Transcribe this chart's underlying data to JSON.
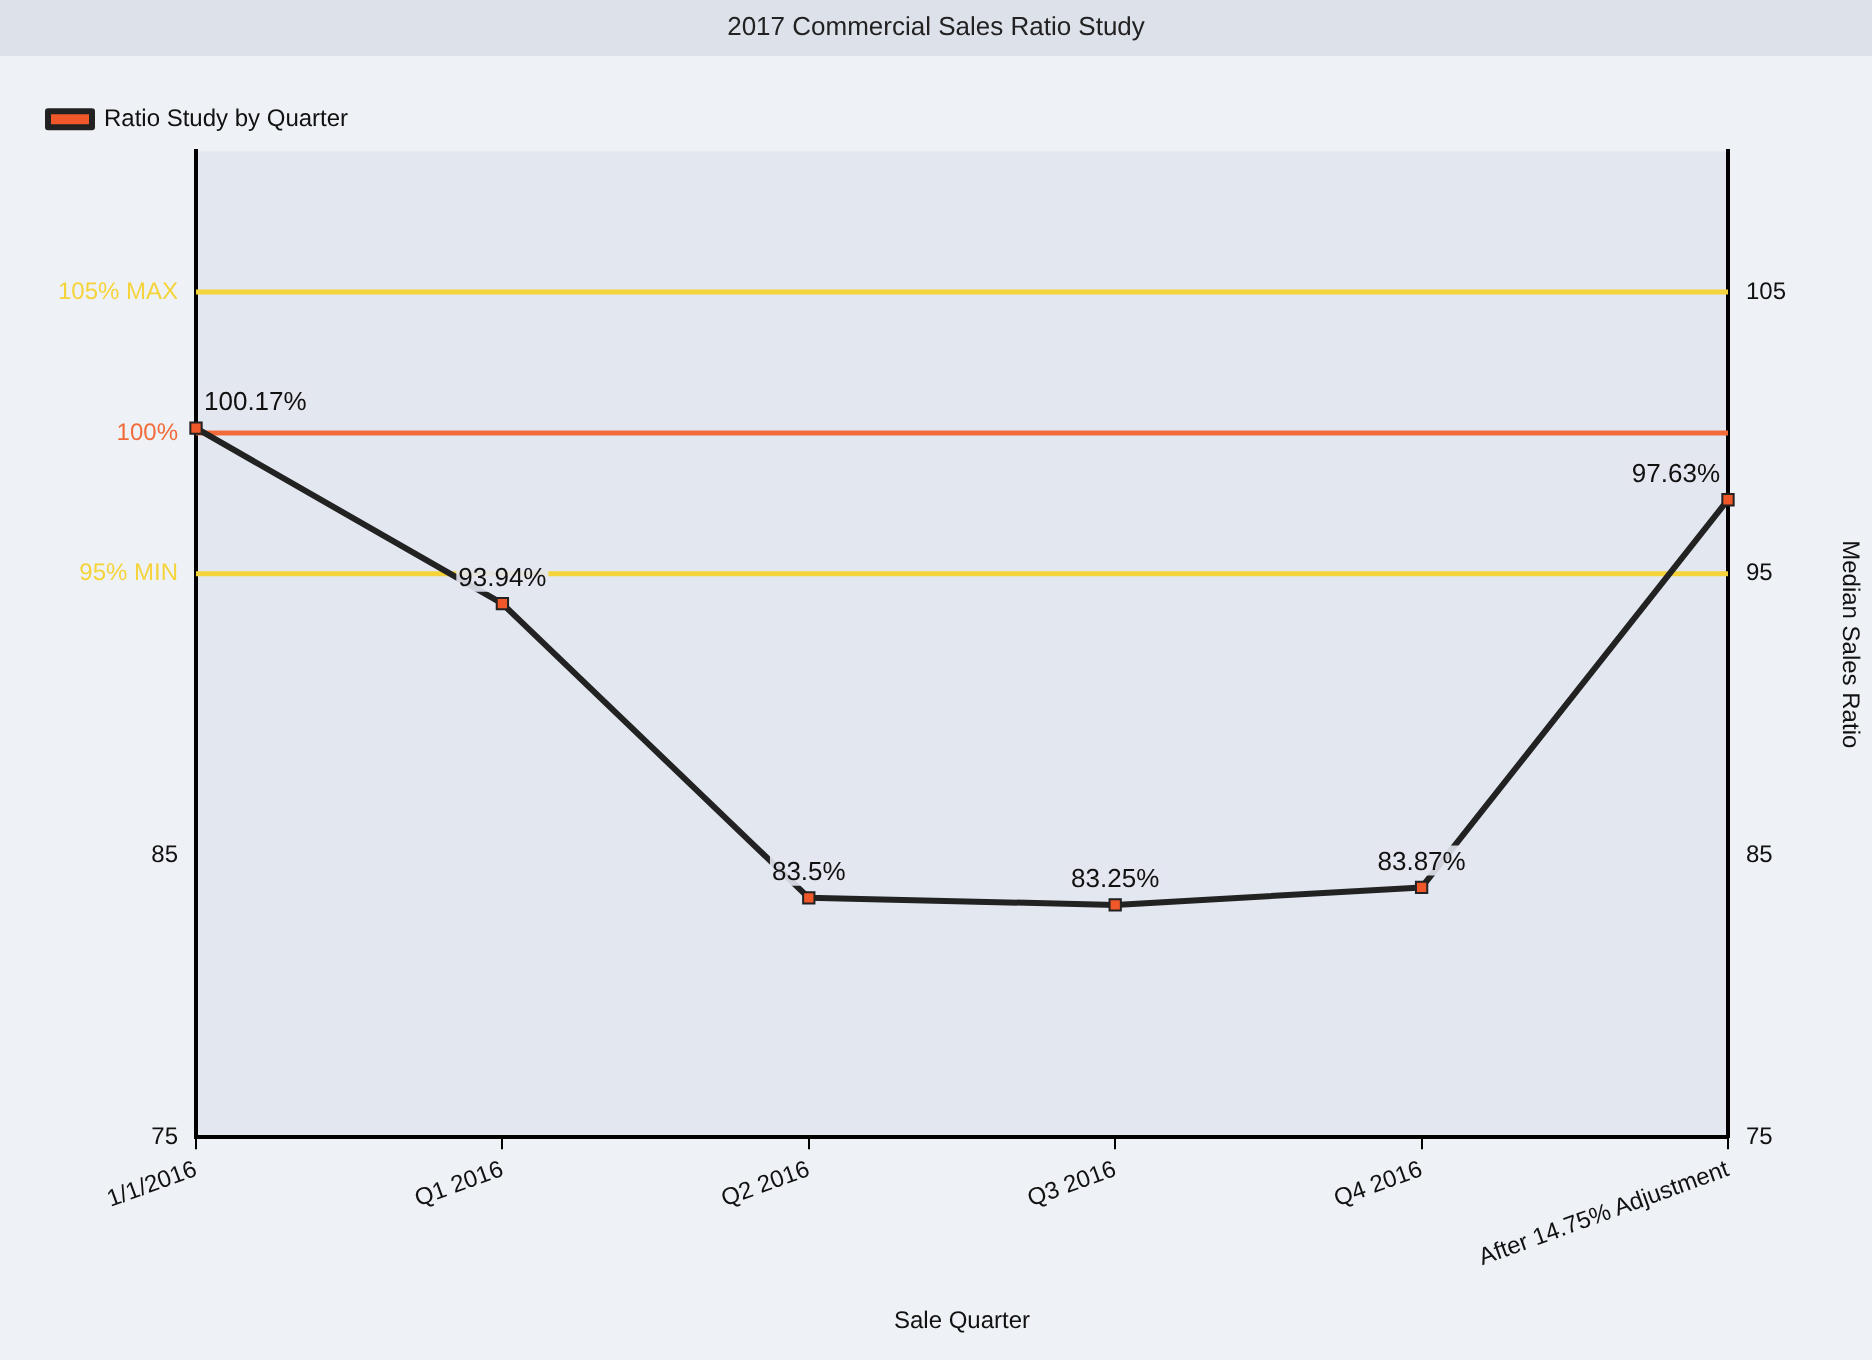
{
  "chart_data": {
    "type": "line",
    "title": "2017 Commercial Sales Ratio Study",
    "xlabel": "Sale Quarter",
    "y2label": "Median Sales Ratio",
    "categories": [
      "1/1/2016",
      "Q1 2016",
      "Q2 2016",
      "Q3 2016",
      "Q4 2016",
      "After 14.75% Adjustment"
    ],
    "series": [
      {
        "name": "Ratio Study by Quarter",
        "color": "#222222",
        "values": [
          100.17,
          93.94,
          83.5,
          83.25,
          83.87,
          97.63
        ],
        "value_labels": [
          "100.17%",
          "93.94%",
          "83.5%",
          "83.25%",
          "83.87%",
          "97.63%"
        ]
      }
    ],
    "ylim": [
      75,
      110
    ],
    "yticks": [
      75,
      85
    ],
    "y2lim": [
      75,
      110
    ],
    "y2ticks": [
      75,
      85,
      95,
      105
    ],
    "ref_lines": [
      {
        "axis": "y",
        "value": 105,
        "label": "105% MAX",
        "color": "#f5d33a"
      },
      {
        "axis": "y",
        "value": 100,
        "label": "100%",
        "color": "#f26b3a"
      },
      {
        "axis": "y",
        "value": 95,
        "label": "95% MIN",
        "color": "#f5d33a"
      }
    ],
    "legend": "top left",
    "marker": "square",
    "grid": false
  }
}
